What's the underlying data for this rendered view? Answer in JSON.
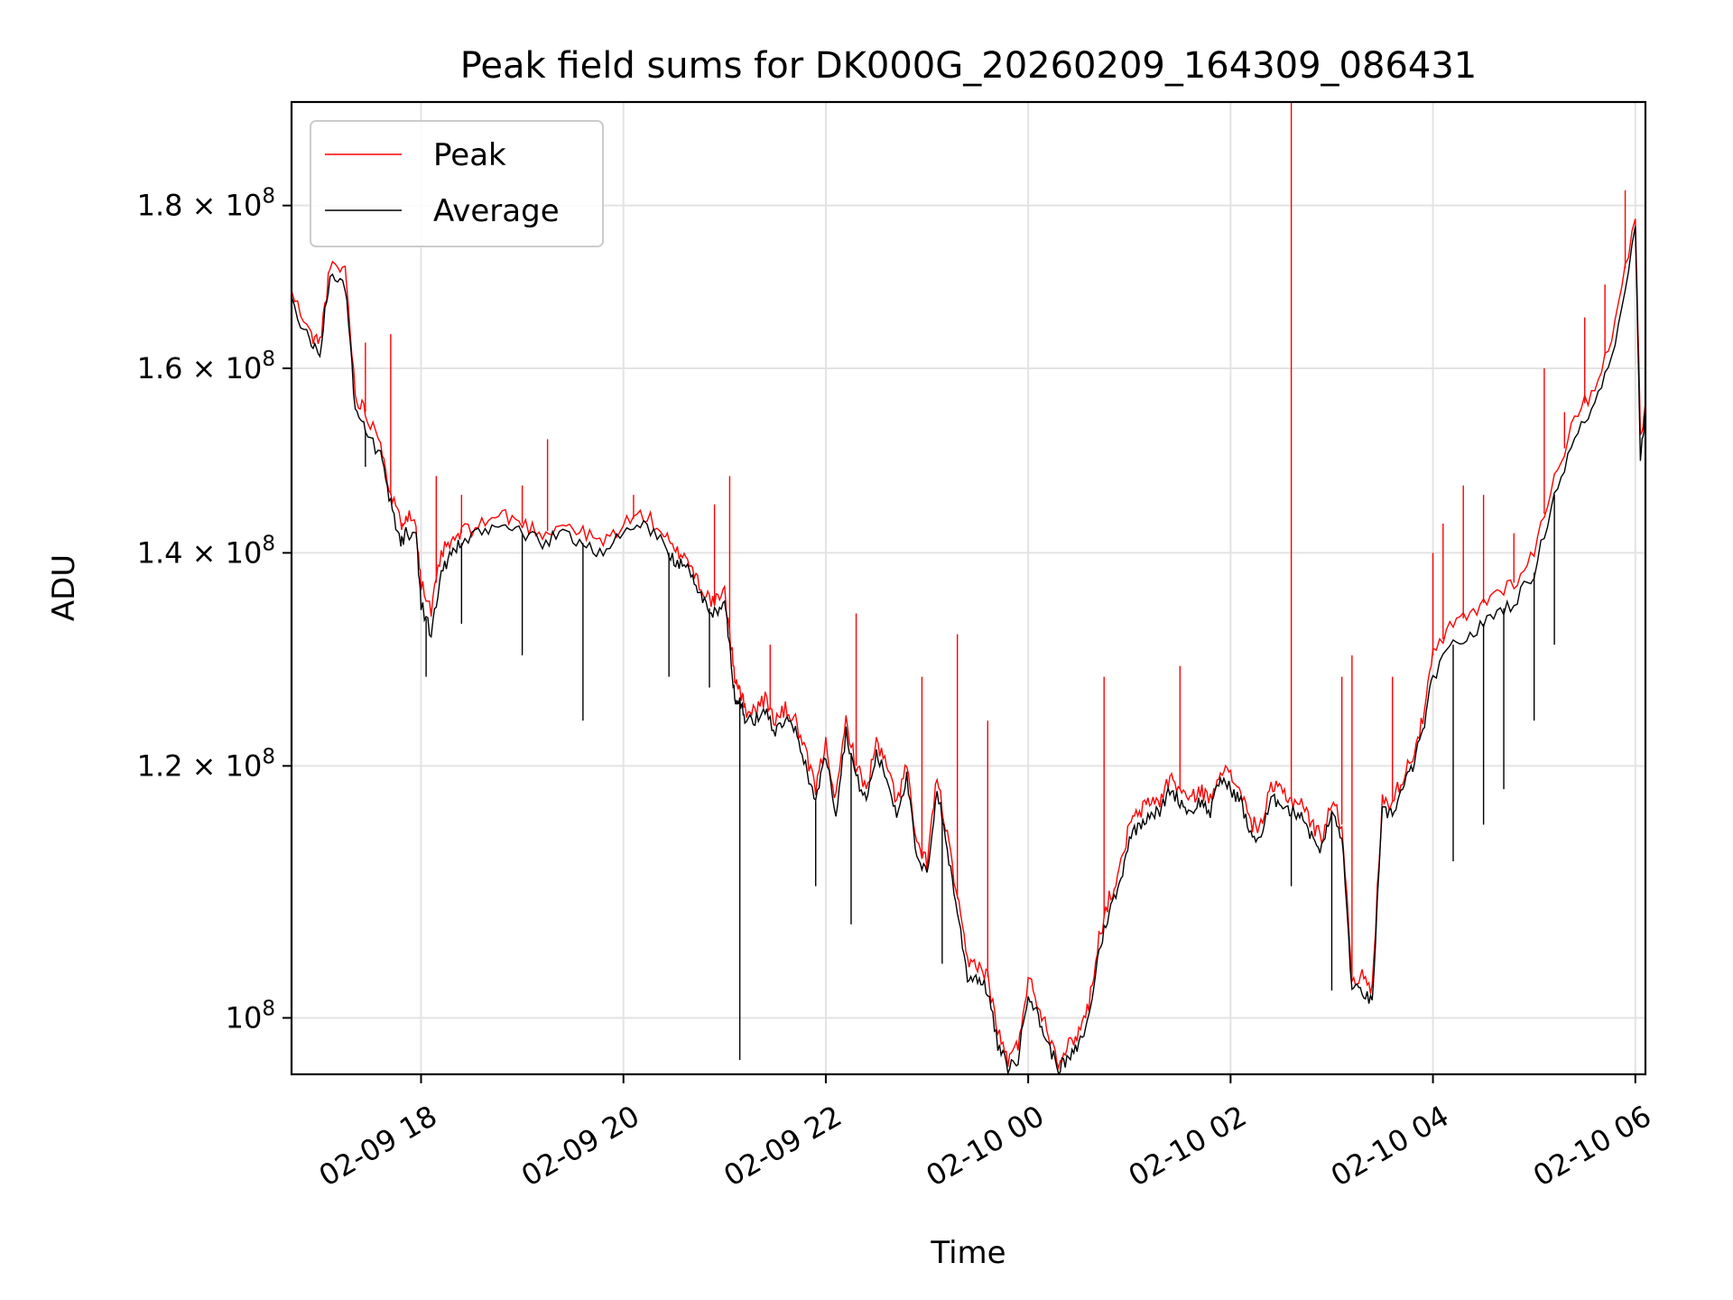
{
  "chart_data": {
    "type": "line",
    "title": "Peak field sums for DK000G_20260209_164309_086431",
    "xlabel": "Time",
    "ylabel": "ADU",
    "yscale": "log",
    "grid": true,
    "legend_placement": "top-left",
    "xlim_hours": [
      16.72,
      30.1
    ],
    "ylim": [
      96000000,
      194000000
    ],
    "x_ticks": [
      {
        "value": 18,
        "label": "02-09 18"
      },
      {
        "value": 20,
        "label": "02-09 20"
      },
      {
        "value": 22,
        "label": "02-09 22"
      },
      {
        "value": 24,
        "label": "02-10 00"
      },
      {
        "value": 26,
        "label": "02-10 02"
      },
      {
        "value": 28,
        "label": "02-10 04"
      },
      {
        "value": 30,
        "label": "02-10 06"
      }
    ],
    "y_ticks": [
      {
        "value": 100000000,
        "mantissa": "",
        "exponent": "8",
        "label": "10^8"
      },
      {
        "value": 120000000,
        "mantissa": "1.2",
        "exponent": "8",
        "label": "1.2x10^8"
      },
      {
        "value": 140000000,
        "mantissa": "1.4",
        "exponent": "8",
        "label": "1.4x10^8"
      },
      {
        "value": 160000000,
        "mantissa": "1.6",
        "exponent": "8",
        "label": "1.6x10^8"
      },
      {
        "value": 180000000,
        "mantissa": "1.8",
        "exponent": "8",
        "label": "1.8x10^8"
      }
    ],
    "series": [
      {
        "name": "Peak",
        "color": "#ff0000",
        "x": [
          16.72,
          16.9,
          17.0,
          17.1,
          17.25,
          17.35,
          17.45,
          17.6,
          17.7,
          17.8,
          17.85,
          17.95,
          18.0,
          18.1,
          18.2,
          18.3,
          18.4,
          18.6,
          18.8,
          19.0,
          19.2,
          19.4,
          19.6,
          19.8,
          20.0,
          20.2,
          20.4,
          20.5,
          20.6,
          20.7,
          20.8,
          20.9,
          21.0,
          21.05,
          21.1,
          21.15,
          21.2,
          21.3,
          21.4,
          21.5,
          21.6,
          21.7,
          21.8,
          21.9,
          22.0,
          22.1,
          22.2,
          22.3,
          22.4,
          22.5,
          22.6,
          22.7,
          22.8,
          22.9,
          23.0,
          23.1,
          23.2,
          23.3,
          23.4,
          23.5,
          23.6,
          23.7,
          23.8,
          23.9,
          24.0,
          24.1,
          24.2,
          24.3,
          24.4,
          24.5,
          24.6,
          24.7,
          24.8,
          24.9,
          25.0,
          25.1,
          25.2,
          25.3,
          25.4,
          25.5,
          25.6,
          25.7,
          25.8,
          25.9,
          26.0,
          26.1,
          26.2,
          26.3,
          26.4,
          26.5,
          26.6,
          26.7,
          26.8,
          26.9,
          27.0,
          27.1,
          27.2,
          27.3,
          27.4,
          27.5,
          27.6,
          27.7,
          27.8,
          27.9,
          28.0,
          28.2,
          28.4,
          28.6,
          28.8,
          29.0,
          29.2,
          29.4,
          29.6,
          29.8,
          30.0,
          30.05,
          30.1
        ],
        "y": [
          169000000,
          164000000,
          163000000,
          172000000,
          172000000,
          157000000,
          155000000,
          152000000,
          146000000,
          143000000,
          144000000,
          143000000,
          137000000,
          134000000,
          140000000,
          141000000,
          142000000,
          143000000,
          144000000,
          143000000,
          142000000,
          143000000,
          142000000,
          141000000,
          143000000,
          144000000,
          142000000,
          140000000,
          140000000,
          138000000,
          136000000,
          135000000,
          136000000,
          132000000,
          128000000,
          127000000,
          125000000,
          125000000,
          126000000,
          124000000,
          125000000,
          124000000,
          121000000,
          118000000,
          122000000,
          117000000,
          124000000,
          120000000,
          118000000,
          122000000,
          120000000,
          117000000,
          120000000,
          113000000,
          112000000,
          119000000,
          114000000,
          109000000,
          104000000,
          104000000,
          103000000,
          99000000,
          97000000,
          98000000,
          103000000,
          101000000,
          99000000,
          97000000,
          98000000,
          99000000,
          101000000,
          106000000,
          109000000,
          111000000,
          115000000,
          116000000,
          117000000,
          117000000,
          119000000,
          118000000,
          117000000,
          118000000,
          117000000,
          120000000,
          119000000,
          118000000,
          115000000,
          115000000,
          118000000,
          118000000,
          117000000,
          117000000,
          115000000,
          114000000,
          117000000,
          115000000,
          103000000,
          103000000,
          102000000,
          117000000,
          117000000,
          119000000,
          121000000,
          124000000,
          130000000,
          133000000,
          134000000,
          136000000,
          137000000,
          140000000,
          148000000,
          154000000,
          158000000,
          165000000,
          179000000,
          152000000,
          156000000
        ],
        "spikes": [
          {
            "x": 17.45,
            "y": 163000000
          },
          {
            "x": 17.7,
            "y": 164000000
          },
          {
            "x": 18.15,
            "y": 148000000
          },
          {
            "x": 18.4,
            "y": 146000000
          },
          {
            "x": 19.0,
            "y": 147000000
          },
          {
            "x": 19.25,
            "y": 152000000
          },
          {
            "x": 20.1,
            "y": 146000000
          },
          {
            "x": 20.9,
            "y": 145000000
          },
          {
            "x": 21.05,
            "y": 148000000
          },
          {
            "x": 21.45,
            "y": 131000000
          },
          {
            "x": 22.3,
            "y": 134000000
          },
          {
            "x": 22.95,
            "y": 128000000
          },
          {
            "x": 23.3,
            "y": 132000000
          },
          {
            "x": 23.6,
            "y": 124000000
          },
          {
            "x": 24.75,
            "y": 128000000
          },
          {
            "x": 25.5,
            "y": 129000000
          },
          {
            "x": 26.6,
            "y": 194000000
          },
          {
            "x": 27.1,
            "y": 128000000
          },
          {
            "x": 27.2,
            "y": 130000000
          },
          {
            "x": 27.6,
            "y": 128000000
          },
          {
            "x": 28.0,
            "y": 140000000
          },
          {
            "x": 28.1,
            "y": 143000000
          },
          {
            "x": 28.3,
            "y": 147000000
          },
          {
            "x": 28.5,
            "y": 146000000
          },
          {
            "x": 28.8,
            "y": 142000000
          },
          {
            "x": 29.1,
            "y": 160000000
          },
          {
            "x": 29.3,
            "y": 155000000
          },
          {
            "x": 29.5,
            "y": 166000000
          },
          {
            "x": 29.7,
            "y": 170000000
          },
          {
            "x": 29.9,
            "y": 182000000
          }
        ]
      },
      {
        "name": "Average",
        "color": "#000000",
        "x": [
          16.72,
          16.9,
          17.0,
          17.1,
          17.25,
          17.35,
          17.45,
          17.6,
          17.7,
          17.8,
          17.85,
          17.95,
          18.0,
          18.1,
          18.2,
          18.3,
          18.4,
          18.6,
          18.8,
          19.0,
          19.2,
          19.4,
          19.6,
          19.8,
          20.0,
          20.2,
          20.4,
          20.5,
          20.6,
          20.7,
          20.8,
          20.9,
          21.0,
          21.05,
          21.1,
          21.15,
          21.2,
          21.3,
          21.4,
          21.5,
          21.6,
          21.7,
          21.8,
          21.9,
          22.0,
          22.1,
          22.2,
          22.3,
          22.4,
          22.5,
          22.6,
          22.7,
          22.8,
          22.9,
          23.0,
          23.1,
          23.2,
          23.3,
          23.4,
          23.5,
          23.6,
          23.7,
          23.8,
          23.9,
          24.0,
          24.1,
          24.2,
          24.3,
          24.4,
          24.5,
          24.6,
          24.7,
          24.8,
          24.9,
          25.0,
          25.1,
          25.2,
          25.3,
          25.4,
          25.5,
          25.6,
          25.7,
          25.8,
          25.9,
          26.0,
          26.1,
          26.2,
          26.3,
          26.4,
          26.5,
          26.6,
          26.7,
          26.8,
          26.9,
          27.0,
          27.1,
          27.2,
          27.3,
          27.4,
          27.5,
          27.6,
          27.7,
          27.8,
          27.9,
          28.0,
          28.2,
          28.4,
          28.6,
          28.8,
          29.0,
          29.2,
          29.4,
          29.6,
          29.8,
          30.0,
          30.05,
          30.1
        ],
        "y": [
          168000000,
          163000000,
          162000000,
          171000000,
          170000000,
          155000000,
          153000000,
          150000000,
          145000000,
          141000000,
          142000000,
          142000000,
          135000000,
          132000000,
          138000000,
          140000000,
          141000000,
          142000000,
          143000000,
          142000000,
          141000000,
          142000000,
          141000000,
          140000000,
          142000000,
          143000000,
          141000000,
          139000000,
          139000000,
          137000000,
          135000000,
          134000000,
          135000000,
          131000000,
          126000000,
          126000000,
          124000000,
          124000000,
          125000000,
          123000000,
          124000000,
          123000000,
          120000000,
          117000000,
          121000000,
          116000000,
          123000000,
          119000000,
          117000000,
          121000000,
          119000000,
          116000000,
          119000000,
          112000000,
          111000000,
          118000000,
          113000000,
          108000000,
          103000000,
          103000000,
          102000000,
          98000000,
          96500000,
          97000000,
          102000000,
          100000000,
          98000000,
          96500000,
          97000000,
          98000000,
          100000000,
          105000000,
          108000000,
          110000000,
          114000000,
          115000000,
          116000000,
          116000000,
          118000000,
          117000000,
          116000000,
          117000000,
          116000000,
          119000000,
          118000000,
          117000000,
          114000000,
          114000000,
          117000000,
          117000000,
          116000000,
          116000000,
          114000000,
          113000000,
          116000000,
          114000000,
          102000000,
          102000000,
          101000000,
          116000000,
          116000000,
          118000000,
          120000000,
          123000000,
          128000000,
          131000000,
          132000000,
          134000000,
          135000000,
          138000000,
          146000000,
          152000000,
          156000000,
          163000000,
          177000000,
          150000000,
          155000000
        ],
        "dips": [
          {
            "x": 17.45,
            "y": 149000000
          },
          {
            "x": 18.05,
            "y": 128000000
          },
          {
            "x": 18.4,
            "y": 133000000
          },
          {
            "x": 19.0,
            "y": 130000000
          },
          {
            "x": 19.6,
            "y": 124000000
          },
          {
            "x": 20.45,
            "y": 128000000
          },
          {
            "x": 20.85,
            "y": 127000000
          },
          {
            "x": 21.15,
            "y": 97000000
          },
          {
            "x": 21.9,
            "y": 110000000
          },
          {
            "x": 22.25,
            "y": 107000000
          },
          {
            "x": 23.15,
            "y": 104000000
          },
          {
            "x": 26.6,
            "y": 110000000
          },
          {
            "x": 27.0,
            "y": 102000000
          },
          {
            "x": 28.2,
            "y": 112000000
          },
          {
            "x": 28.5,
            "y": 115000000
          },
          {
            "x": 28.7,
            "y": 118000000
          },
          {
            "x": 29.0,
            "y": 124000000
          },
          {
            "x": 29.2,
            "y": 131000000
          }
        ]
      }
    ]
  }
}
